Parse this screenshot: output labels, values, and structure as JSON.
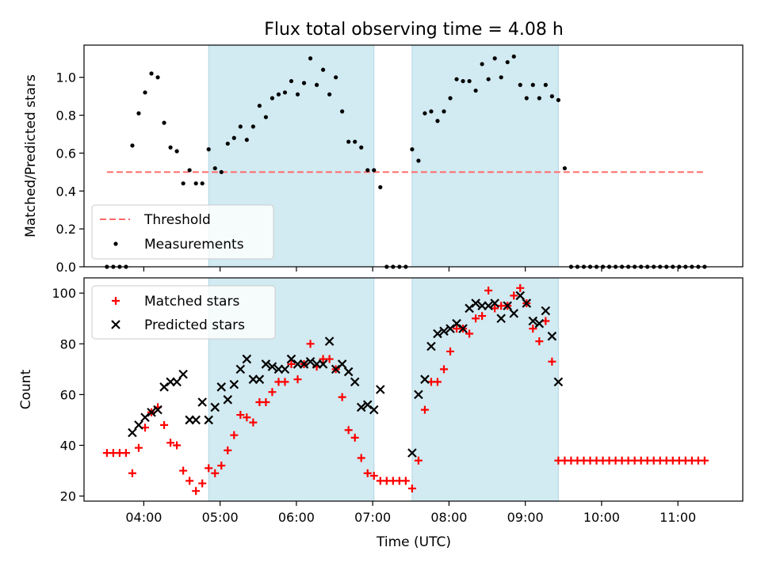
{
  "chart_data": [
    {
      "type": "scatter",
      "title": "Flux total observing time = 4.08 h",
      "xlabel": "",
      "ylabel": "Matched/Predicted stars",
      "x_ticks": [
        "04:00",
        "05:00",
        "06:00",
        "07:00",
        "08:00",
        "09:00",
        "10:00",
        "11:00"
      ],
      "x_tick_labels_visible": false,
      "xlim": [
        "03:13",
        "11:51"
      ],
      "ylim": [
        0,
        1.17
      ],
      "y_ticks": [
        "0.0",
        "0.2",
        "0.4",
        "0.6",
        "0.8",
        "1.0"
      ],
      "shaded_intervals": [
        [
          "04:51",
          "07:01"
        ],
        [
          "07:31",
          "09:26"
        ]
      ],
      "shade_color": "#add8e6",
      "threshold": {
        "label": "Threshold",
        "value": 0.5,
        "x_start": "03:31",
        "x_end": "11:21",
        "color": "#ff6b6b"
      },
      "legend": {
        "position": "lower-left",
        "entries": [
          "Threshold",
          "Measurements"
        ]
      },
      "series": [
        {
          "name": "Measurements",
          "color": "#000000",
          "x": [
            "03:31",
            "03:36",
            "03:41",
            "03:46",
            "03:51",
            "03:56",
            "04:01",
            "04:06",
            "04:11",
            "04:16",
            "04:21",
            "04:26",
            "04:31",
            "04:36",
            "04:41",
            "04:46",
            "04:51",
            "04:56",
            "05:01",
            "05:06",
            "05:11",
            "05:16",
            "05:21",
            "05:26",
            "05:31",
            "05:36",
            "05:41",
            "05:46",
            "05:51",
            "05:56",
            "06:01",
            "06:06",
            "06:11",
            "06:16",
            "06:21",
            "06:26",
            "06:31",
            "06:36",
            "06:41",
            "06:46",
            "06:51",
            "06:56",
            "07:01",
            "07:06",
            "07:11",
            "07:16",
            "07:21",
            "07:26",
            "07:31",
            "07:36",
            "07:41",
            "07:46",
            "07:51",
            "07:56",
            "08:01",
            "08:06",
            "08:11",
            "08:16",
            "08:21",
            "08:26",
            "08:31",
            "08:36",
            "08:41",
            "08:46",
            "08:51",
            "08:56",
            "09:01",
            "09:06",
            "09:11",
            "09:16",
            "09:21",
            "09:26",
            "09:31",
            "09:36",
            "09:41",
            "09:46",
            "09:51",
            "09:56",
            "10:01",
            "10:06",
            "10:11",
            "10:16",
            "10:21",
            "10:26",
            "10:31",
            "10:36",
            "10:41",
            "10:46",
            "10:51",
            "10:56",
            "11:01",
            "11:06",
            "11:11",
            "11:16",
            "11:21"
          ],
          "y": [
            0,
            0,
            0,
            0,
            0.64,
            0.81,
            0.92,
            1.02,
            1.0,
            0.76,
            0.63,
            0.61,
            0.44,
            0.51,
            0.44,
            0.44,
            0.62,
            0.52,
            0.5,
            0.65,
            0.68,
            0.74,
            0.67,
            0.74,
            0.85,
            0.79,
            0.89,
            0.91,
            0.92,
            0.98,
            0.91,
            0.97,
            1.1,
            0.96,
            1.04,
            0.91,
            1.0,
            0.82,
            0.66,
            0.66,
            0.63,
            0.51,
            0.51,
            0.42,
            0,
            0,
            0,
            0,
            0.62,
            0.56,
            0.81,
            0.82,
            0.77,
            0.82,
            0.89,
            0.99,
            0.98,
            0.98,
            0.93,
            1.07,
            0.99,
            1.1,
            1.0,
            1.08,
            1.11,
            0.96,
            0.89,
            0.96,
            0.89,
            0.96,
            0.9,
            0.88,
            0.52,
            0,
            0,
            0,
            0,
            0,
            0,
            0,
            0,
            0,
            0,
            0,
            0,
            0,
            0,
            0,
            0,
            0,
            0,
            0,
            0,
            0,
            0
          ]
        }
      ]
    },
    {
      "type": "scatter",
      "title": "",
      "xlabel": "Time (UTC)",
      "ylabel": "Count",
      "x_ticks": [
        "04:00",
        "05:00",
        "06:00",
        "07:00",
        "08:00",
        "09:00",
        "10:00",
        "11:00"
      ],
      "xlim": [
        "03:13",
        "11:51"
      ],
      "ylim": [
        18,
        106
      ],
      "y_ticks": [
        "20",
        "40",
        "60",
        "80",
        "100"
      ],
      "shaded_intervals": [
        [
          "04:51",
          "07:01"
        ],
        [
          "07:31",
          "09:26"
        ]
      ],
      "shade_color": "#add8e6",
      "legend": {
        "position": "upper-left",
        "entries": [
          "Matched stars",
          "Predicted stars"
        ]
      },
      "series": [
        {
          "name": "Matched stars",
          "marker": "+",
          "color": "#ff0000",
          "x": [
            "03:31",
            "03:36",
            "03:41",
            "03:46",
            "03:51",
            "03:56",
            "04:01",
            "04:06",
            "04:11",
            "04:16",
            "04:21",
            "04:26",
            "04:31",
            "04:36",
            "04:41",
            "04:46",
            "04:51",
            "04:56",
            "05:01",
            "05:06",
            "05:11",
            "05:16",
            "05:21",
            "05:26",
            "05:31",
            "05:36",
            "05:41",
            "05:46",
            "05:51",
            "05:56",
            "06:01",
            "06:06",
            "06:11",
            "06:16",
            "06:21",
            "06:26",
            "06:31",
            "06:36",
            "06:41",
            "06:46",
            "06:51",
            "06:56",
            "07:01",
            "07:06",
            "07:11",
            "07:16",
            "07:21",
            "07:26",
            "07:31",
            "07:36",
            "07:41",
            "07:46",
            "07:51",
            "07:56",
            "08:01",
            "08:06",
            "08:11",
            "08:16",
            "08:21",
            "08:26",
            "08:31",
            "08:36",
            "08:41",
            "08:46",
            "08:51",
            "08:56",
            "09:01",
            "09:06",
            "09:11",
            "09:16",
            "09:21",
            "09:26",
            "09:31",
            "09:36",
            "09:41",
            "09:46",
            "09:51",
            "09:56",
            "10:01",
            "10:06",
            "10:11",
            "10:16",
            "10:21",
            "10:26",
            "10:31",
            "10:36",
            "10:41",
            "10:46",
            "10:51",
            "10:56",
            "11:01",
            "11:06",
            "11:11",
            "11:16",
            "11:21"
          ],
          "y": [
            37,
            37,
            37,
            37,
            29,
            39,
            47,
            53,
            55,
            48,
            41,
            40,
            30,
            26,
            22,
            25,
            31,
            29,
            32,
            38,
            44,
            52,
            51,
            49,
            57,
            57,
            61,
            65,
            65,
            72,
            66,
            72,
            80,
            71,
            74,
            74,
            70,
            59,
            46,
            43,
            35,
            29,
            28,
            26,
            26,
            26,
            26,
            26,
            23,
            34,
            54,
            65,
            65,
            70,
            77,
            86,
            86,
            84,
            90,
            91,
            101,
            94,
            95,
            95,
            99,
            102,
            96,
            86,
            81,
            89,
            73,
            34,
            34,
            34,
            34,
            34,
            34,
            34,
            34,
            34,
            34,
            34,
            34,
            34,
            34,
            34,
            34,
            34,
            34,
            34,
            34,
            34,
            34,
            34,
            34
          ]
        },
        {
          "name": "Predicted stars",
          "marker": "x",
          "color": "#000000",
          "x": [
            "03:51",
            "03:56",
            "04:01",
            "04:06",
            "04:11",
            "04:16",
            "04:21",
            "04:26",
            "04:31",
            "04:36",
            "04:41",
            "04:46",
            "04:51",
            "04:56",
            "05:01",
            "05:06",
            "05:11",
            "05:16",
            "05:21",
            "05:26",
            "05:31",
            "05:36",
            "05:41",
            "05:46",
            "05:51",
            "05:56",
            "06:01",
            "06:06",
            "06:11",
            "06:16",
            "06:21",
            "06:26",
            "06:31",
            "06:36",
            "06:41",
            "06:46",
            "06:51",
            "06:56",
            "07:01",
            "07:06",
            "07:31",
            "07:36",
            "07:41",
            "07:46",
            "07:51",
            "07:56",
            "08:01",
            "08:06",
            "08:11",
            "08:16",
            "08:21",
            "08:26",
            "08:31",
            "08:36",
            "08:41",
            "08:46",
            "08:51",
            "08:56",
            "09:01",
            "09:06",
            "09:11",
            "09:16",
            "09:21",
            "09:26"
          ],
          "y": [
            45,
            48,
            51,
            53,
            54,
            63,
            65,
            65,
            68,
            50,
            50,
            57,
            50,
            55,
            63,
            58,
            64,
            70,
            74,
            66,
            66,
            72,
            71,
            70,
            70,
            74,
            72,
            72,
            73,
            72,
            72,
            81,
            70,
            72,
            69,
            65,
            55,
            56,
            54,
            62,
            37,
            60,
            66,
            79,
            84,
            85,
            86,
            88,
            86,
            94,
            96,
            95,
            95,
            96,
            90,
            95,
            92,
            99,
            96,
            89,
            88,
            93,
            83,
            65
          ]
        }
      ]
    }
  ]
}
